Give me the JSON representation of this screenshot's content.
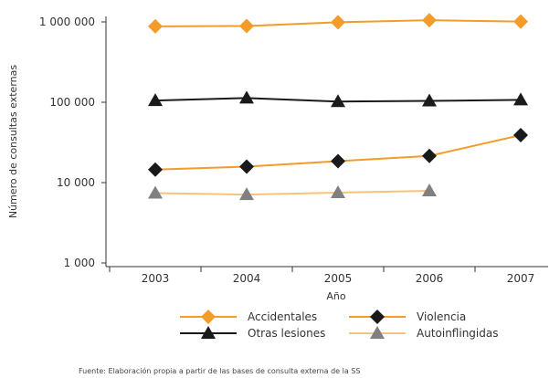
{
  "chart_data": {
    "type": "line",
    "title": "",
    "xlabel": "Año",
    "ylabel": "Número de consultas externas",
    "categories": [
      "2003",
      "2004",
      "2005",
      "2006",
      "2007"
    ],
    "y_scale": "log",
    "ylim": [
      1000,
      1000000
    ],
    "y_ticks": [
      {
        "value": 1000,
        "label": "1 000"
      },
      {
        "value": 10000,
        "label": "10 000"
      },
      {
        "value": 100000,
        "label": "100 000"
      },
      {
        "value": 1000000,
        "label": "1 000 000"
      }
    ],
    "legend_position": "bottom",
    "series": [
      {
        "name": "Accidentales",
        "marker": "diamond",
        "line_color": "#F39C2A",
        "marker_color": "#F39C2A",
        "values": [
          880000,
          890000,
          990000,
          1050000,
          1010000
        ]
      },
      {
        "name": "Violencia",
        "marker": "diamond",
        "line_color": "#F39C2A",
        "marker_color": "#1a1a1a",
        "values": [
          14500,
          15800,
          18500,
          21500,
          39000
        ]
      },
      {
        "name": "Otras lesiones",
        "marker": "triangle",
        "line_color": "#1a1a1a",
        "marker_color": "#1a1a1a",
        "values": [
          105000,
          113000,
          102000,
          104000,
          107000
        ]
      },
      {
        "name": "Autoinflingidas",
        "marker": "triangle",
        "line_color": "#F7C27A",
        "marker_color": "#808080",
        "values": [
          7400,
          7100,
          7500,
          7900,
          null
        ]
      }
    ]
  },
  "source_note": "Fuente: Elaboración propia a partir de las bases de consulta externa de la SS"
}
